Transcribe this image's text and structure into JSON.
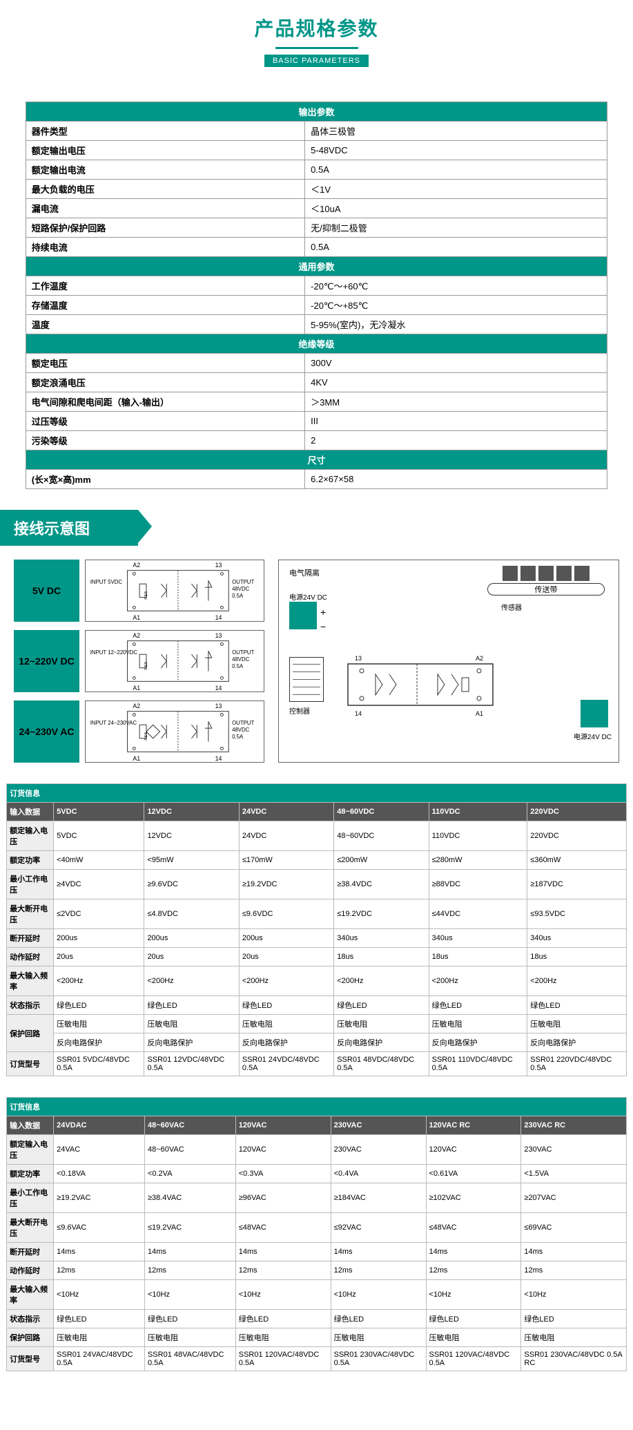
{
  "header": {
    "title": "产品规格参数",
    "badge": "BASIC PARAMETERS"
  },
  "colors": {
    "primary": "#009688",
    "header_dark": "#555555",
    "border": "#999999"
  },
  "spec": {
    "s1": {
      "title": "输出参数",
      "rows": [
        {
          "l": "器件类型",
          "v": "晶体三极管"
        },
        {
          "l": "额定输出电压",
          "v": "5-48VDC"
        },
        {
          "l": "额定输出电流",
          "v": "0.5A"
        },
        {
          "l": "最大负载的电压",
          "v": "＜1V"
        },
        {
          "l": "漏电流",
          "v": "＜10uA"
        },
        {
          "l": "短路保护/保护回路",
          "v": "无/抑制二极管"
        },
        {
          "l": "持续电流",
          "v": "0.5A"
        }
      ]
    },
    "s2": {
      "title": "通用参数",
      "rows": [
        {
          "l": "工作温度",
          "v": "-20℃～+60℃"
        },
        {
          "l": "存储温度",
          "v": "-20℃～+85℃"
        },
        {
          "l": "温度",
          "v": "5-95%(室内)，无冷凝水"
        }
      ]
    },
    "s3": {
      "title": "绝缘等级",
      "rows": [
        {
          "l": "额定电压",
          "v": "300V"
        },
        {
          "l": "额定浪涌电压",
          "v": "4KV"
        },
        {
          "l": "电气间隙和爬电间距（输入-输出）",
          "v": "＞3MM"
        },
        {
          "l": "过压等级",
          "v": "III"
        },
        {
          "l": "污染等级",
          "v": "2"
        }
      ]
    },
    "s4": {
      "title": "尺寸",
      "rows": [
        {
          "l": "(长×宽×高)mm",
          "v": "6.2×67×58"
        }
      ]
    }
  },
  "wiring": {
    "title": "接线示意图",
    "variants": [
      {
        "box": "5V DC",
        "input": "INPUT\n5VDC",
        "out": "OUTPUT\n48VDC\n0.5A"
      },
      {
        "box": "12~220V DC",
        "input": "INPUT\n12~220VDC",
        "out": "OUTPUT\n48VDC\n0.5A"
      },
      {
        "box": "24~230V AC",
        "input": "INPUT\n24~230VAC",
        "out": "OUTPUT\n48VDC\n0.5A"
      }
    ],
    "terminals": {
      "t1": "A1",
      "t2": "A2",
      "t3": "13",
      "t4": "14"
    },
    "app": {
      "iso": "电气隔离",
      "psu": "电源24V DC",
      "conveyor": "传送带",
      "sensor": "传感器",
      "controller": "控制器",
      "psu2": "电源24V DC"
    }
  },
  "order1": {
    "title": "订货信息",
    "cols": [
      "5VDC",
      "12VDC",
      "24VDC",
      "48~60VDC",
      "110VDC",
      "220VDC"
    ],
    "rows": [
      {
        "l": "输入数据",
        "v": [
          "5VDC",
          "12VDC",
          "24VDC",
          "48~60VDC",
          "110VDC",
          "220VDC"
        ],
        "header": true
      },
      {
        "l": "额定输入电压",
        "v": [
          "5VDC",
          "12VDC",
          "24VDC",
          "48~60VDC",
          "110VDC",
          "220VDC"
        ]
      },
      {
        "l": "额定功率",
        "v": [
          "<40mW",
          "<95mW",
          "≤170mW",
          "≤200mW",
          "≤280mW",
          "≤360mW"
        ]
      },
      {
        "l": "最小工作电压",
        "v": [
          "≥4VDC",
          "≥9.6VDC",
          "≥19.2VDC",
          "≥38.4VDC",
          "≥88VDC",
          "≥187VDC"
        ]
      },
      {
        "l": "最大断开电压",
        "v": [
          "≤2VDC",
          "≤4.8VDC",
          "≤9.6VDC",
          "≤19.2VDC",
          "≤44VDC",
          "≤93.5VDC"
        ]
      },
      {
        "l": "断开延时",
        "v": [
          "200us",
          "200us",
          "200us",
          "340us",
          "340us",
          "340us"
        ]
      },
      {
        "l": "动作延时",
        "v": [
          "20us",
          "20us",
          "20us",
          "18us",
          "18us",
          "18us"
        ]
      },
      {
        "l": "最大输入频率",
        "v": [
          "<200Hz",
          "<200Hz",
          "<200Hz",
          "<200Hz",
          "<200Hz",
          "<200Hz"
        ]
      },
      {
        "l": "状态指示",
        "v": [
          "绿色LED",
          "绿色LED",
          "绿色LED",
          "绿色LED",
          "绿色LED",
          "绿色LED"
        ]
      },
      {
        "l": "保护回路",
        "v": [
          "压敏电阻",
          "压敏电阻",
          "压敏电阻",
          "压敏电阻",
          "压敏电阻",
          "压敏电阻"
        ],
        "sub1": true
      },
      {
        "l": "",
        "v": [
          "反向电路保护",
          "反向电路保护",
          "反向电路保护",
          "反向电路保护",
          "反向电路保护",
          "反向电路保护"
        ],
        "sub2": true
      },
      {
        "l": "订货型号",
        "v": [
          "SSR01 5VDC/48VDC 0.5A",
          "SSR01 12VDC/48VDC 0.5A",
          "SSR01 24VDC/48VDC 0.5A",
          "SSR01 48VDC/48VDC 0.5A",
          "SSR01 110VDC/48VDC 0.5A",
          "SSR01 220VDC/48VDC 0.5A"
        ]
      }
    ]
  },
  "order2": {
    "title": "订货信息",
    "cols": [
      "24VDAC",
      "48~60VAC",
      "120VAC",
      "230VAC",
      "120VAC RC",
      "230VAC RC"
    ],
    "rows": [
      {
        "l": "输入数据",
        "v": [
          "24VDAC",
          "48~60VAC",
          "120VAC",
          "230VAC",
          "120VAC RC",
          "230VAC RC"
        ],
        "header": true
      },
      {
        "l": "额定输入电压",
        "v": [
          "24VAC",
          "48~60VAC",
          "120VAC",
          "230VAC",
          "120VAC",
          "230VAC"
        ]
      },
      {
        "l": "额定功率",
        "v": [
          "<0.18VA",
          "<0.2VA",
          "<0.3VA",
          "<0.4VA",
          "<0.61VA",
          "<1.5VA"
        ]
      },
      {
        "l": "最小工作电压",
        "v": [
          "≥19.2VAC",
          "≥38.4VAC",
          "≥96VAC",
          "≥184VAC",
          "≥102VAC",
          "≥207VAC"
        ]
      },
      {
        "l": "最大断开电压",
        "v": [
          "≤9.6VAC",
          "≤19.2VAC",
          "≤48VAC",
          "≤92VAC",
          "≤48VAC",
          "≤69VAC"
        ]
      },
      {
        "l": "断开延时",
        "v": [
          "14ms",
          "14ms",
          "14ms",
          "14ms",
          "14ms",
          "14ms"
        ]
      },
      {
        "l": "动作延时",
        "v": [
          "12ms",
          "12ms",
          "12ms",
          "12ms",
          "12ms",
          "12ms"
        ]
      },
      {
        "l": "最大输入频率",
        "v": [
          "<10Hz",
          "<10Hz",
          "<10Hz",
          "<10Hz",
          "<10Hz",
          "<10Hz"
        ]
      },
      {
        "l": "状态指示",
        "v": [
          "绿色LED",
          "绿色LED",
          "绿色LED",
          "绿色LED",
          "绿色LED",
          "绿色LED"
        ]
      },
      {
        "l": "保护回路",
        "v": [
          "压敏电阻",
          "压敏电阻",
          "压敏电阻",
          "压敏电阻",
          "压敏电阻",
          "压敏电阻"
        ]
      },
      {
        "l": "订货型号",
        "v": [
          "SSR01 24VAC/48VDC 0.5A",
          "SSR01 48VAC/48VDC 0.5A",
          "SSR01 120VAC/48VDC 0.5A",
          "SSR01 230VAC/48VDC 0.5A",
          "SSR01 120VAC/48VDC 0.5A",
          "SSR01 230VAC/48VDC 0.5A RC"
        ]
      }
    ]
  }
}
